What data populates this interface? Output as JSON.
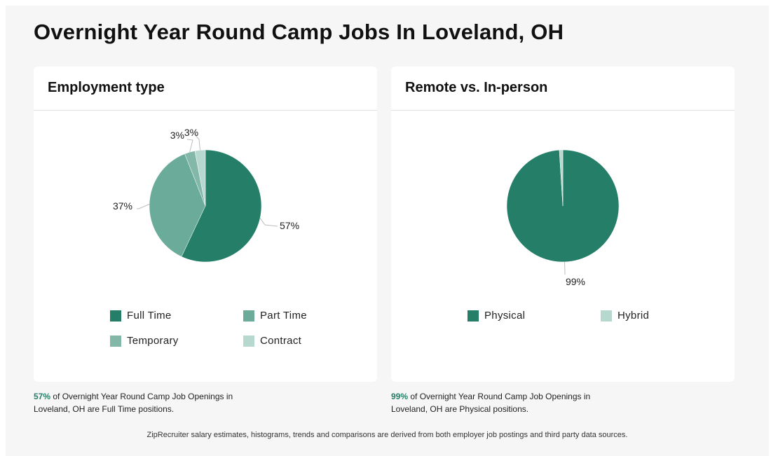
{
  "page": {
    "title": "Overnight Year Round Camp Jobs In Loveland, OH",
    "footer": "ZipRecruiter salary estimates, histograms, trends and comparisons are derived from both employer job postings and third party data sources."
  },
  "colors": {
    "full_time": "#257f68",
    "part_time": "#6aab99",
    "temporary": "#83b8a9",
    "contract": "#b7d8cf",
    "physical": "#257f68",
    "hybrid": "#b7d8cf",
    "leader_line": "#bdbdbd",
    "accent": "#257f68"
  },
  "employment": {
    "title": "Employment type",
    "caption_pct": "57%",
    "caption_text": " of Overnight Year Round Camp Job Openings in Loveland, OH are Full Time positions."
  },
  "remote": {
    "title": "Remote vs. In-person",
    "caption_pct": "99%",
    "caption_text": " of Overnight Year Round Camp Job Openings in Loveland, OH are Physical positions."
  },
  "chart_data": [
    {
      "type": "pie",
      "title": "Employment type",
      "categories": [
        "Full Time",
        "Part Time",
        "Temporary",
        "Contract"
      ],
      "values": [
        57,
        37,
        3,
        3
      ],
      "labels": [
        "57%",
        "37%",
        "3%",
        "3%"
      ],
      "colors": [
        "#257f68",
        "#6aab99",
        "#83b8a9",
        "#b7d8cf"
      ],
      "legend": "bottom"
    },
    {
      "type": "pie",
      "title": "Remote vs. In-person",
      "categories": [
        "Physical",
        "Hybrid"
      ],
      "values": [
        99,
        1
      ],
      "labels": [
        "99%",
        ""
      ],
      "colors": [
        "#257f68",
        "#b7d8cf"
      ],
      "legend": "bottom"
    }
  ]
}
